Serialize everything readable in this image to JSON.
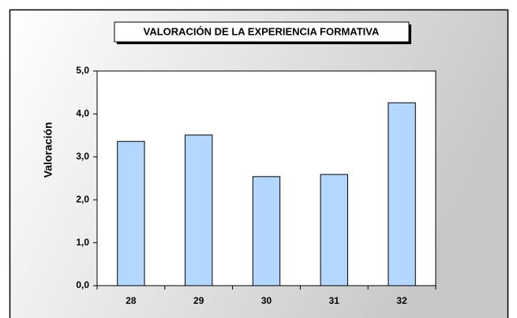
{
  "chart_data": {
    "type": "bar",
    "title": "VALORACIÓN DE LA EXPERIENCIA FORMATIVA",
    "y_label": "Valoración",
    "categories": [
      "28",
      "29",
      "30",
      "31",
      "32"
    ],
    "values": [
      3.36,
      3.51,
      2.54,
      2.59,
      4.26
    ],
    "color": "#b3d7ff",
    "ylim": [
      0,
      5
    ],
    "yticks": [
      {
        "value": 0,
        "label": "0,0"
      },
      {
        "value": 1,
        "label": "1,0"
      },
      {
        "value": 2,
        "label": "2,0"
      },
      {
        "value": 3,
        "label": "3,0"
      },
      {
        "value": 4,
        "label": "4,0"
      },
      {
        "value": 5,
        "label": "5,0"
      }
    ],
    "grid": false
  }
}
